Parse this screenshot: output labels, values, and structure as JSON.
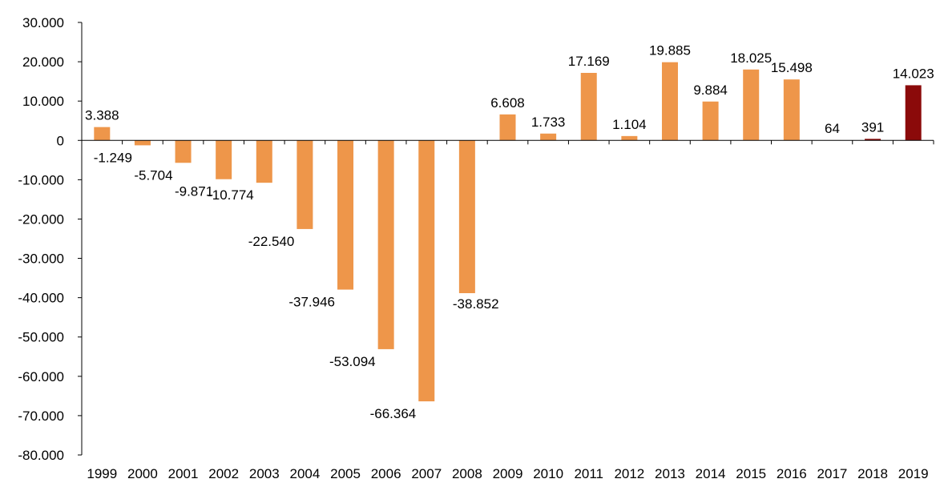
{
  "chart_data": {
    "type": "bar",
    "title": "",
    "xlabel": "",
    "ylabel": "",
    "ylim": [
      -80000,
      30000
    ],
    "ytick_step": 10000,
    "ytick_labels": [
      "30.000",
      "20.000",
      "10.000",
      "0",
      "-10.000",
      "-20.000",
      "-30.000",
      "-40.000",
      "-50.000",
      "-60.000",
      "-70.000",
      "-80.000"
    ],
    "grid": false,
    "legend": "none",
    "categories": [
      "1999",
      "2000",
      "2001",
      "2002",
      "2003",
      "2004",
      "2005",
      "2006",
      "2007",
      "2008",
      "2009",
      "2010",
      "2011",
      "2012",
      "2013",
      "2014",
      "2015",
      "2016",
      "2017",
      "2018",
      "2019"
    ],
    "values": [
      3388,
      -1249,
      -5704,
      -9871,
      -10774,
      -22540,
      -37946,
      -53094,
      -66364,
      -38852,
      6608,
      1733,
      17169,
      1104,
      19885,
      9884,
      18025,
      15498,
      64,
      391,
      14023
    ],
    "data_labels": [
      "3.388",
      "-1.249",
      "-5.704",
      "-9.871",
      "-10.774",
      "-22.540",
      "-37.946",
      "-53.094",
      "-66.364",
      "-38.852",
      "6.608",
      "1.733",
      "17.169",
      "1.104",
      "19.885",
      "9.884",
      "18.025",
      "15.498",
      "64",
      "391",
      "14.023"
    ],
    "colors": {
      "default": "#EE964A",
      "highlight": "#8B0A0A"
    },
    "highlight_categories": [
      "2018",
      "2019"
    ]
  }
}
